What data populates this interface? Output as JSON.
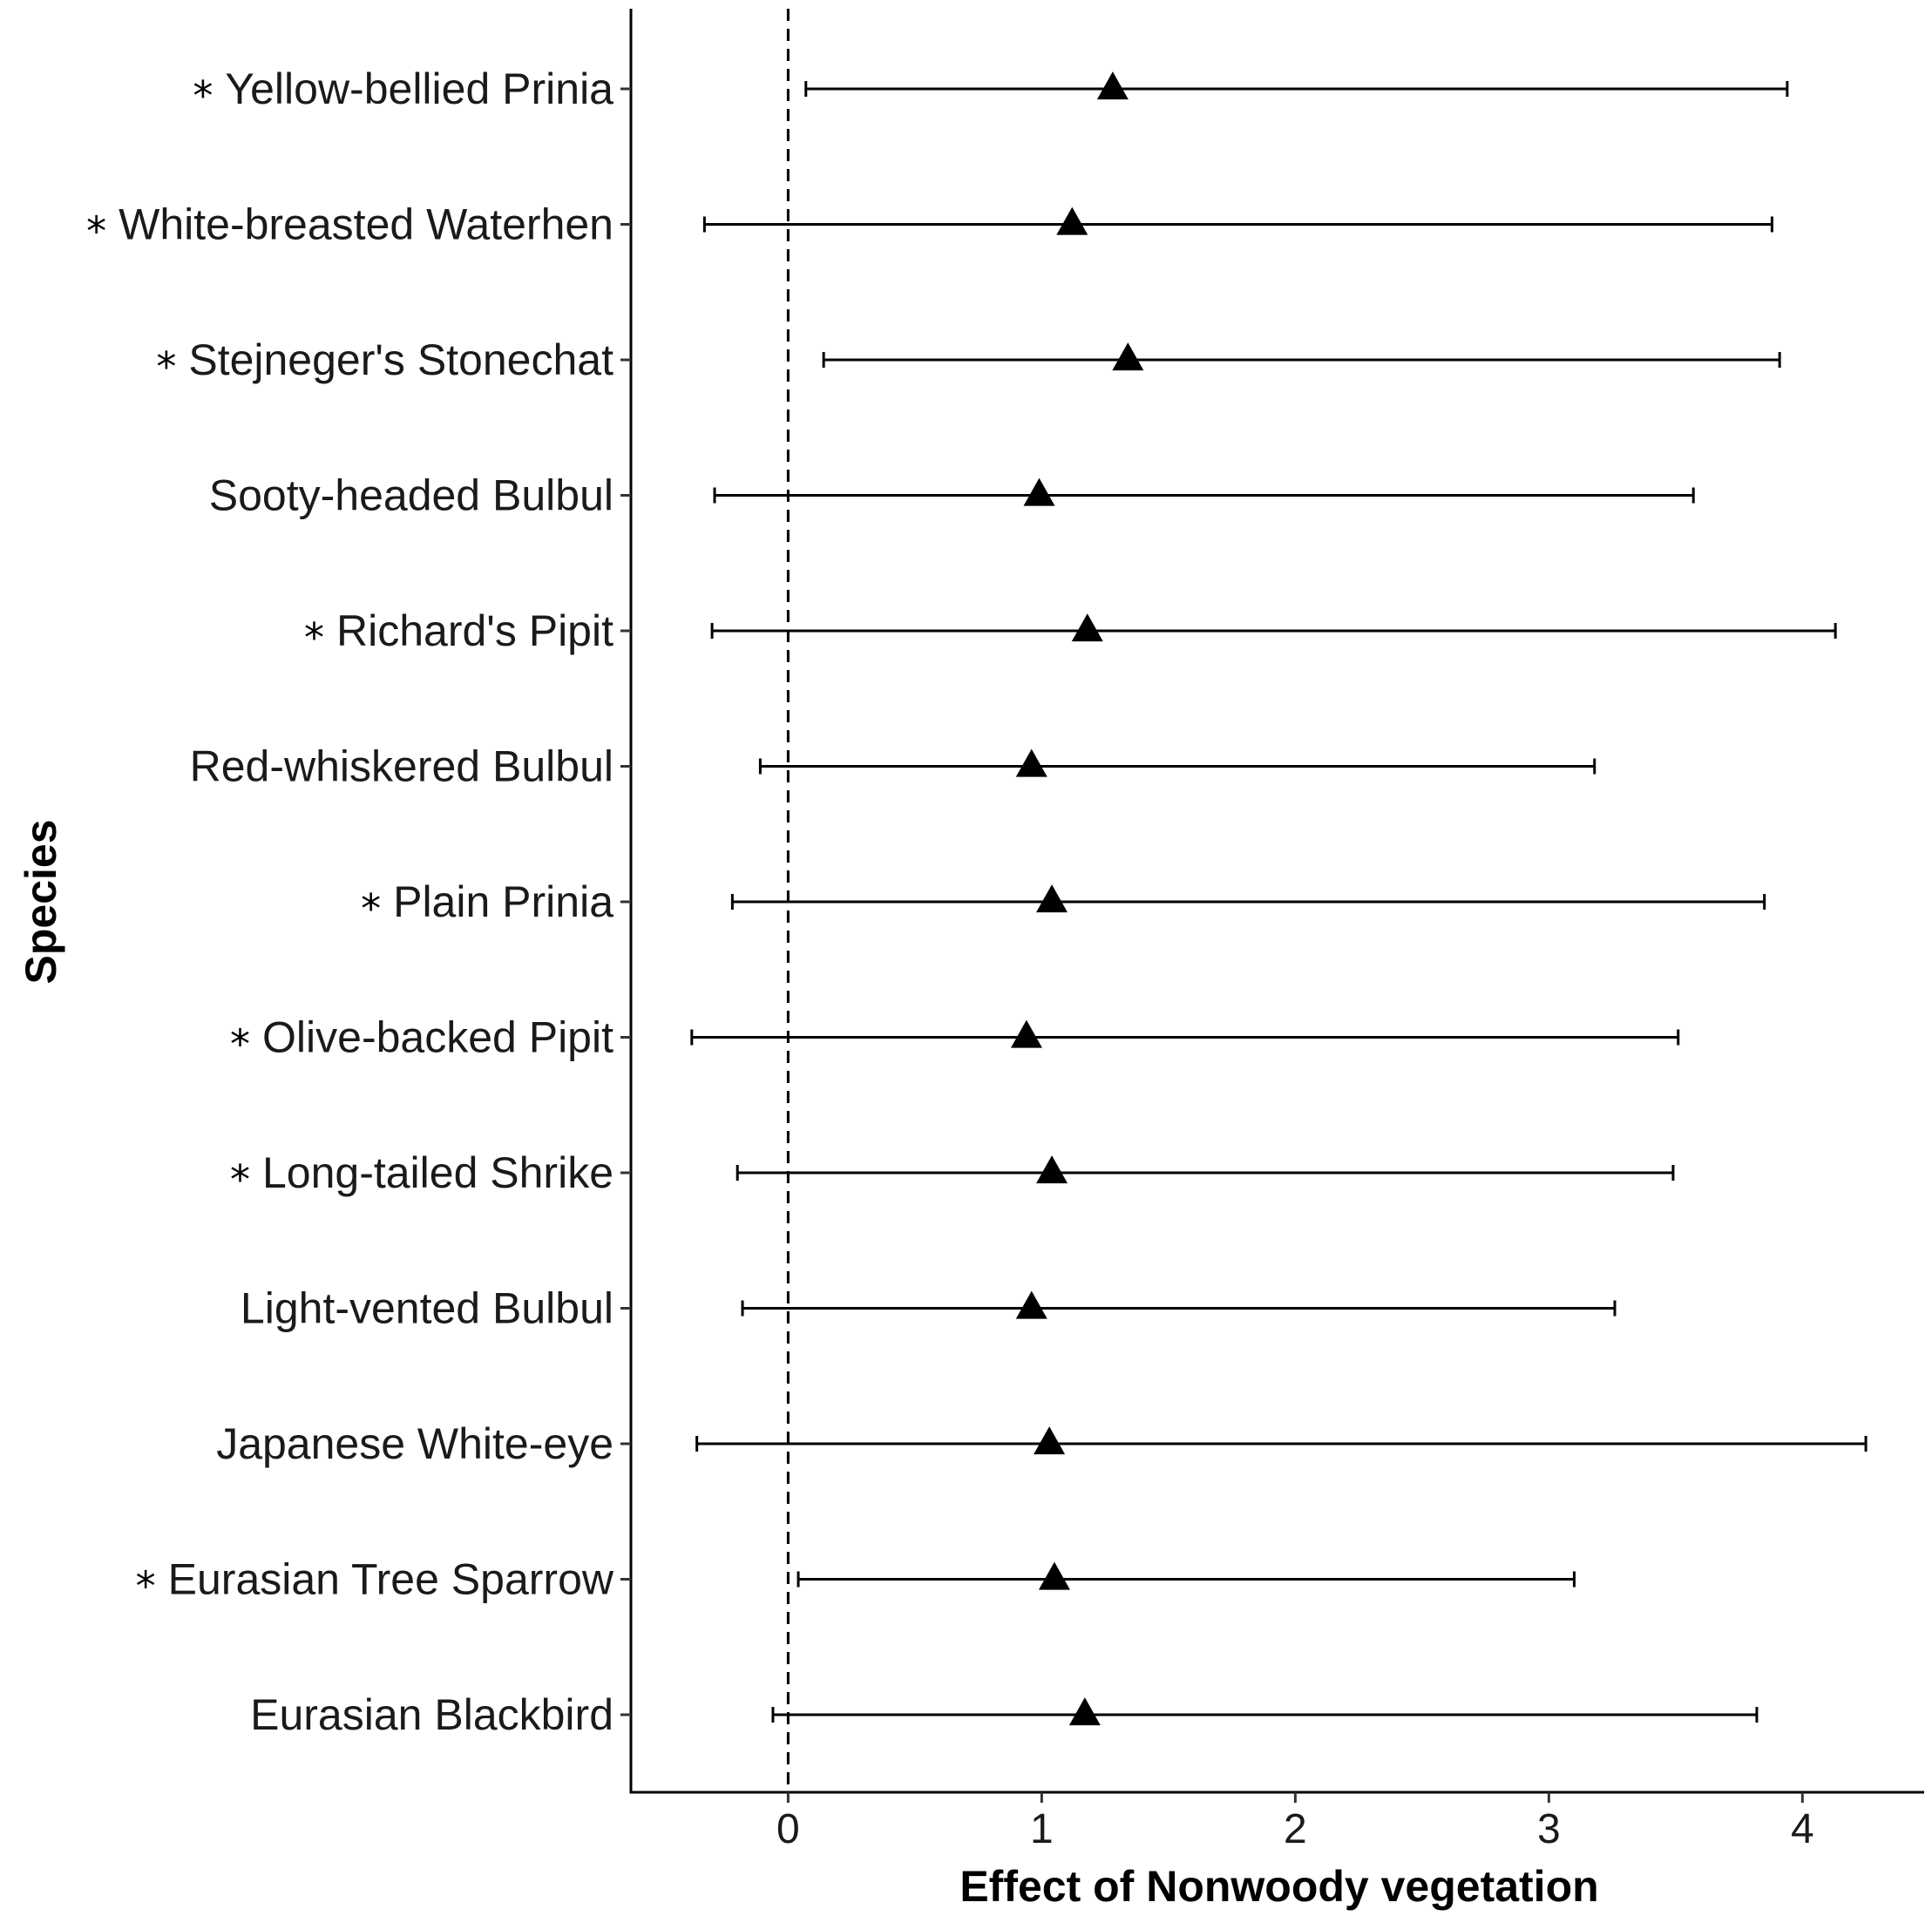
{
  "chart_data": {
    "type": "scatter",
    "title": "",
    "xlabel": "Effect of Nonwoody vegetation",
    "ylabel": "Species",
    "xlim": [
      -0.62,
      4.48
    ],
    "xticks": [
      0,
      1,
      2,
      3,
      4
    ],
    "reference_line": {
      "x": 0,
      "style": "dashed"
    },
    "grid": false,
    "marker": "triangle",
    "significance_marker": "*",
    "categories": [
      "Yellow-bellied Prinia",
      "White-breasted Waterhen",
      "Stejneger's Stonechat",
      "Sooty-headed Bulbul",
      "Richard's Pipit",
      "Red-whiskered Bulbul",
      "Plain Prinia",
      "Olive-backed Pipit",
      "Long-tailed Shrike",
      "Light-vented Bulbul",
      "Japanese White-eye",
      "Eurasian Tree Sparrow",
      "Eurasian Blackbird"
    ],
    "significant": [
      true,
      true,
      true,
      false,
      true,
      false,
      true,
      true,
      true,
      false,
      false,
      true,
      false
    ],
    "estimate": [
      1.28,
      1.12,
      1.34,
      0.99,
      1.18,
      0.96,
      1.04,
      0.94,
      1.04,
      0.96,
      1.03,
      1.05,
      1.17
    ],
    "lower": [
      0.07,
      -0.33,
      0.14,
      -0.29,
      -0.3,
      -0.11,
      -0.22,
      -0.38,
      -0.2,
      -0.18,
      -0.36,
      0.04,
      -0.06
    ],
    "upper": [
      3.94,
      3.88,
      3.91,
      3.57,
      4.13,
      3.18,
      3.85,
      3.51,
      3.49,
      3.26,
      4.25,
      3.1,
      3.82
    ]
  }
}
